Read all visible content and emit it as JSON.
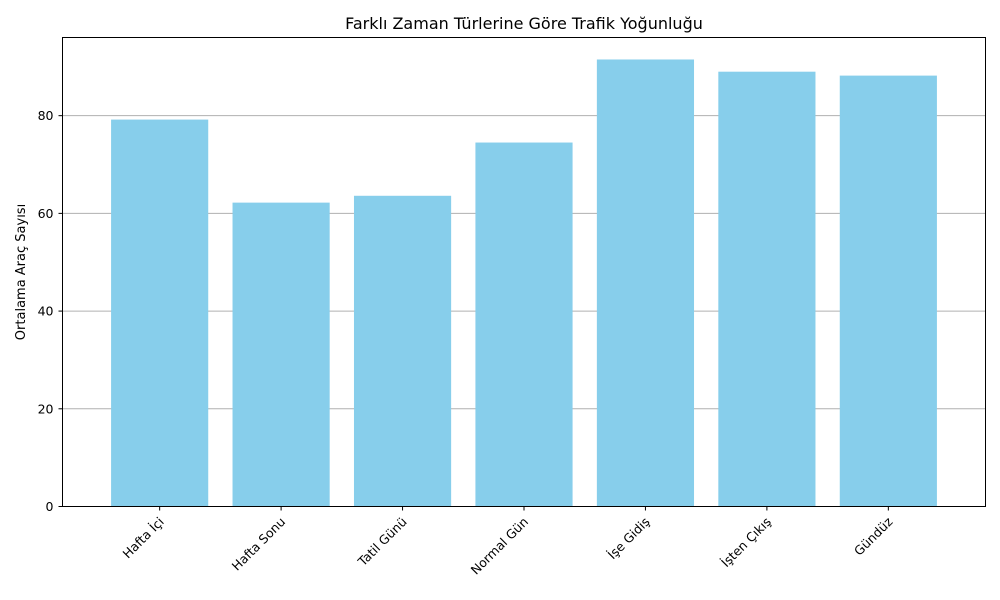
{
  "chart_data": {
    "type": "bar",
    "title": "Farklı Zaman Türlerine Göre Trafik Yoğunluğu",
    "xlabel": "",
    "ylabel": "Ortalama Araç Sayısı",
    "categories": [
      "Hafta İçi",
      "Hafta Sonu",
      "Tatil Günü",
      "Normal Gün",
      "İşe Gidiş",
      "İşten Çıkış",
      "Gündüz"
    ],
    "values": [
      79.2,
      62.2,
      63.6,
      74.5,
      91.5,
      89.0,
      88.2
    ],
    "ylim": [
      0,
      96
    ],
    "yticks": [
      0,
      20,
      40,
      60,
      80
    ],
    "grid": "y-axis",
    "bar_color": "#87ceeb",
    "tick_label_rotation": 45
  }
}
